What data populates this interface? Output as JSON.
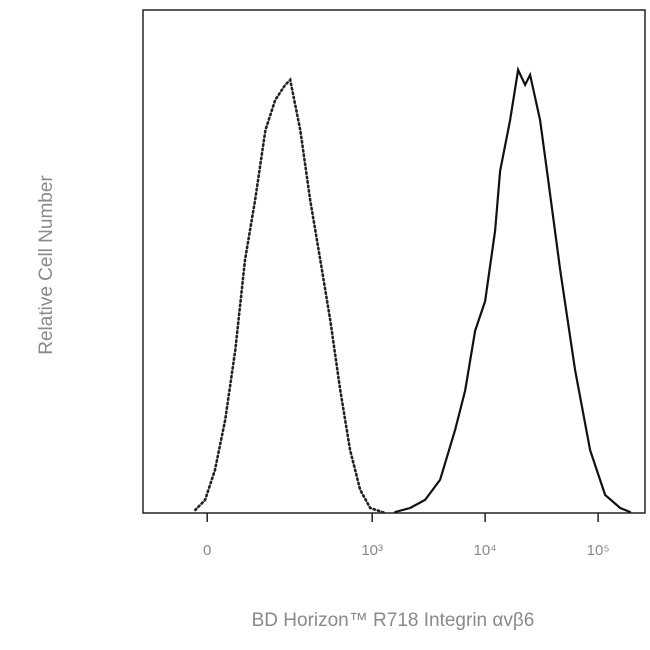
{
  "chart_data": {
    "type": "line",
    "xlabel": "BD Horizon™ R718 Integrin αvβ6",
    "ylabel": "Relative Cell Number",
    "xscale": "biexponential",
    "xlim": [
      -119,
      260000
    ],
    "xticks": [
      0,
      {
        "value": 1000,
        "label": "10³"
      },
      {
        "value": 10000,
        "label": "10⁴"
      },
      {
        "value": 100000,
        "label": "10⁵"
      }
    ],
    "ylim": [
      0,
      100
    ],
    "series": [
      {
        "color": "#222222",
        "style": "dotted",
        "x": [
          -17,
          -3,
          11,
          26,
          42,
          59,
          79,
          103,
          130,
          163,
          182,
          226,
          279,
          344,
          423,
          519,
          637,
          782,
          960,
          1305
        ],
        "values": [
          0.6,
          2.6,
          8.5,
          18.5,
          32.4,
          50.3,
          62.2,
          76.1,
          82.1,
          85.1,
          86.1,
          76.1,
          62.2,
          50.3,
          38.4,
          24.5,
          12.5,
          4.6,
          1.0,
          0
        ]
      },
      {
        "color": "#111111",
        "style": "solid",
        "x": [
          1598,
          2169,
          2945,
          3998,
          5429,
          6652,
          8157,
          10000,
          12250,
          13580,
          16640,
          19590,
          22600,
          25010,
          30690,
          36130,
          46140,
          62570,
          84920,
          115300,
          156700,
          191900
        ],
        "values": [
          0.2,
          1.0,
          2.6,
          6.6,
          16.5,
          24.3,
          36.2,
          42.1,
          56.1,
          68.0,
          78.1,
          88.1,
          85.1,
          87.1,
          78.1,
          66.2,
          48.3,
          28.4,
          12.5,
          3.6,
          1.0,
          0.2
        ]
      }
    ]
  }
}
